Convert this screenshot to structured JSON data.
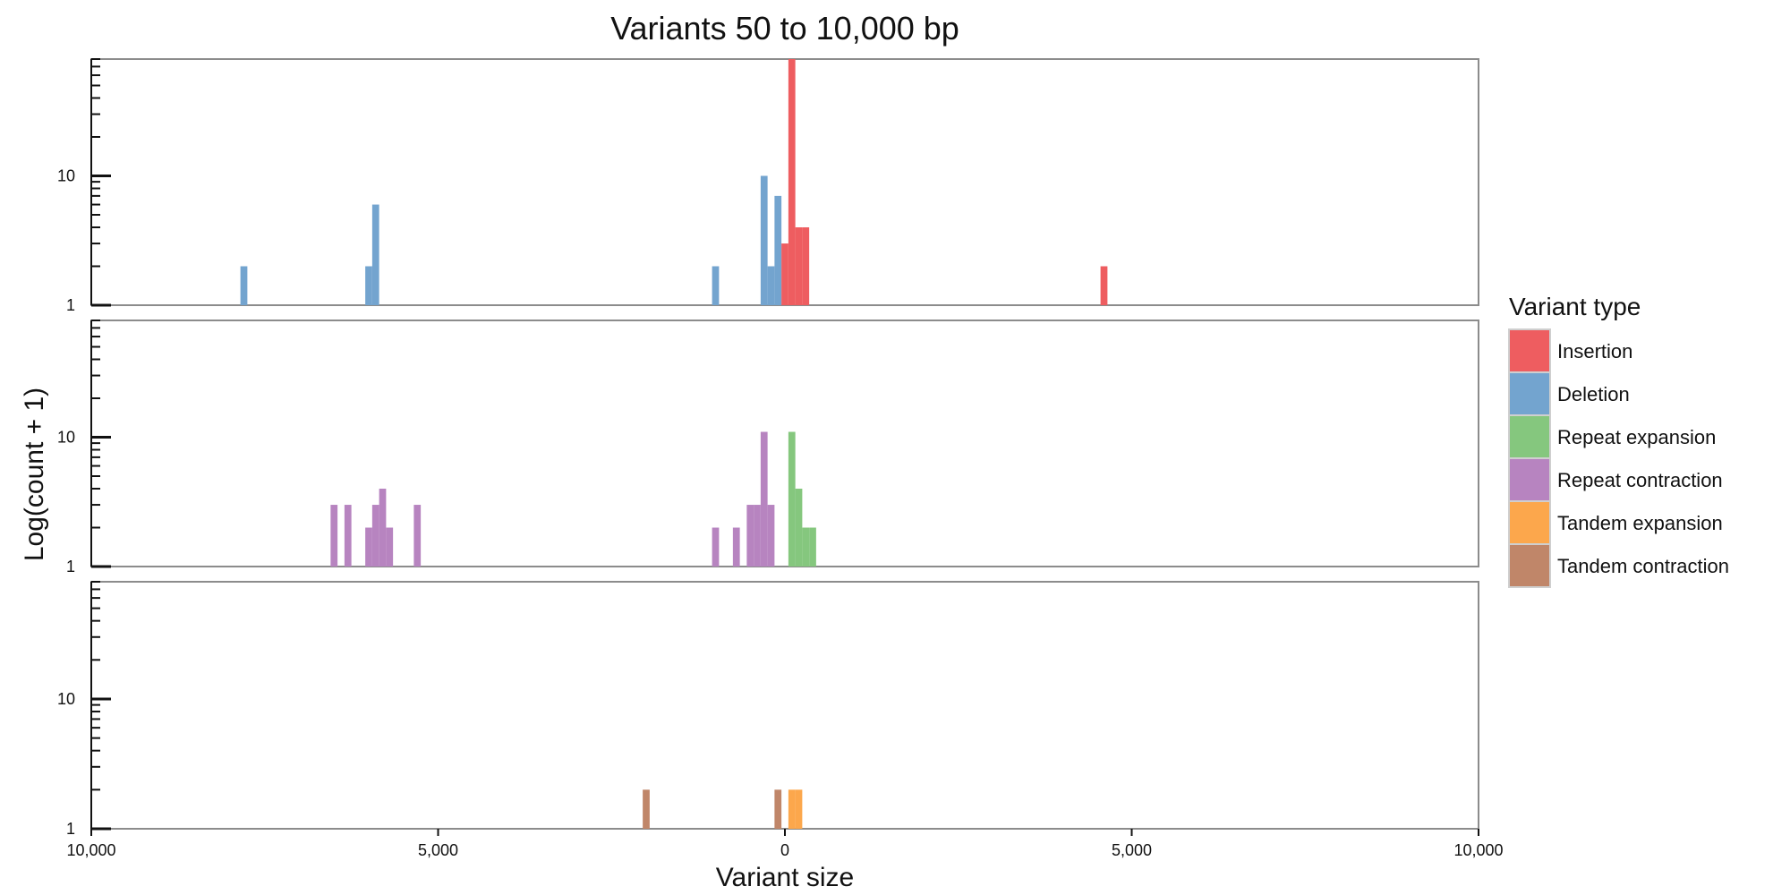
{
  "chart_data": {
    "type": "bar",
    "title": "Variants 50 to 10,000 bp",
    "xlabel": "Variant size",
    "ylabel": "Log(count + 1)",
    "x_range": [
      -10000,
      10000
    ],
    "x_ticks": [
      {
        "value": -10000,
        "label": "10,000"
      },
      {
        "value": -5000,
        "label": "5,000"
      },
      {
        "value": 0,
        "label": "0"
      },
      {
        "value": 5000,
        "label": "5,000"
      },
      {
        "value": 10000,
        "label": "10,000"
      }
    ],
    "y_scale": "log",
    "y_range": [
      1,
      80
    ],
    "y_ticks": [
      {
        "value": 1,
        "label": "1"
      },
      {
        "value": 10,
        "label": "10"
      }
    ],
    "bin_width": 100,
    "legend": {
      "title": "Variant type",
      "position": "right",
      "items": [
        {
          "label": "Insertion",
          "color": "#ee5d60"
        },
        {
          "label": "Deletion",
          "color": "#73a4cf"
        },
        {
          "label": "Repeat expansion",
          "color": "#85c77e"
        },
        {
          "label": "Repeat contraction",
          "color": "#b784c0"
        },
        {
          "label": "Tandem expansion",
          "color": "#fca74c"
        },
        {
          "label": "Tandem contraction",
          "color": "#c08669"
        }
      ]
    },
    "panels": [
      {
        "series": [
          {
            "name": "Deletion",
            "color": "#73a4cf",
            "bars": [
              {
                "x0": -7850,
                "x1": -7750,
                "y": 2
              },
              {
                "x0": -6050,
                "x1": -5950,
                "y": 2
              },
              {
                "x0": -5950,
                "x1": -5850,
                "y": 6
              },
              {
                "x0": -1050,
                "x1": -950,
                "y": 2
              },
              {
                "x0": -350,
                "x1": -250,
                "y": 10
              },
              {
                "x0": -250,
                "x1": -150,
                "y": 2
              },
              {
                "x0": -150,
                "x1": -50,
                "y": 7
              }
            ]
          },
          {
            "name": "Insertion",
            "color": "#ee5d60",
            "bars": [
              {
                "x0": -50,
                "x1": 50,
                "y": 3
              },
              {
                "x0": 50,
                "x1": 150,
                "y": 80
              },
              {
                "x0": 150,
                "x1": 250,
                "y": 4
              },
              {
                "x0": 250,
                "x1": 350,
                "y": 4
              },
              {
                "x0": 4550,
                "x1": 4650,
                "y": 2
              }
            ]
          }
        ]
      },
      {
        "series": [
          {
            "name": "Repeat contraction",
            "color": "#b784c0",
            "bars": [
              {
                "x0": -6550,
                "x1": -6450,
                "y": 3
              },
              {
                "x0": -6350,
                "x1": -6250,
                "y": 3
              },
              {
                "x0": -6050,
                "x1": -5950,
                "y": 2
              },
              {
                "x0": -5950,
                "x1": -5850,
                "y": 3
              },
              {
                "x0": -5850,
                "x1": -5750,
                "y": 4
              },
              {
                "x0": -5750,
                "x1": -5650,
                "y": 2
              },
              {
                "x0": -5350,
                "x1": -5250,
                "y": 3
              },
              {
                "x0": -1050,
                "x1": -950,
                "y": 2
              },
              {
                "x0": -750,
                "x1": -650,
                "y": 2
              },
              {
                "x0": -550,
                "x1": -450,
                "y": 3
              },
              {
                "x0": -450,
                "x1": -350,
                "y": 3
              },
              {
                "x0": -350,
                "x1": -250,
                "y": 11
              },
              {
                "x0": -250,
                "x1": -150,
                "y": 3
              }
            ]
          },
          {
            "name": "Repeat expansion",
            "color": "#85c77e",
            "bars": [
              {
                "x0": 50,
                "x1": 150,
                "y": 11
              },
              {
                "x0": 150,
                "x1": 250,
                "y": 4
              },
              {
                "x0": 250,
                "x1": 350,
                "y": 2
              },
              {
                "x0": 350,
                "x1": 450,
                "y": 2
              }
            ]
          }
        ]
      },
      {
        "series": [
          {
            "name": "Tandem contraction",
            "color": "#c08669",
            "bars": [
              {
                "x0": -2050,
                "x1": -1950,
                "y": 2
              },
              {
                "x0": -150,
                "x1": -50,
                "y": 2
              }
            ]
          },
          {
            "name": "Tandem expansion",
            "color": "#fca74c",
            "bars": [
              {
                "x0": 50,
                "x1": 150,
                "y": 2
              },
              {
                "x0": 150,
                "x1": 250,
                "y": 2
              }
            ]
          }
        ]
      }
    ]
  }
}
